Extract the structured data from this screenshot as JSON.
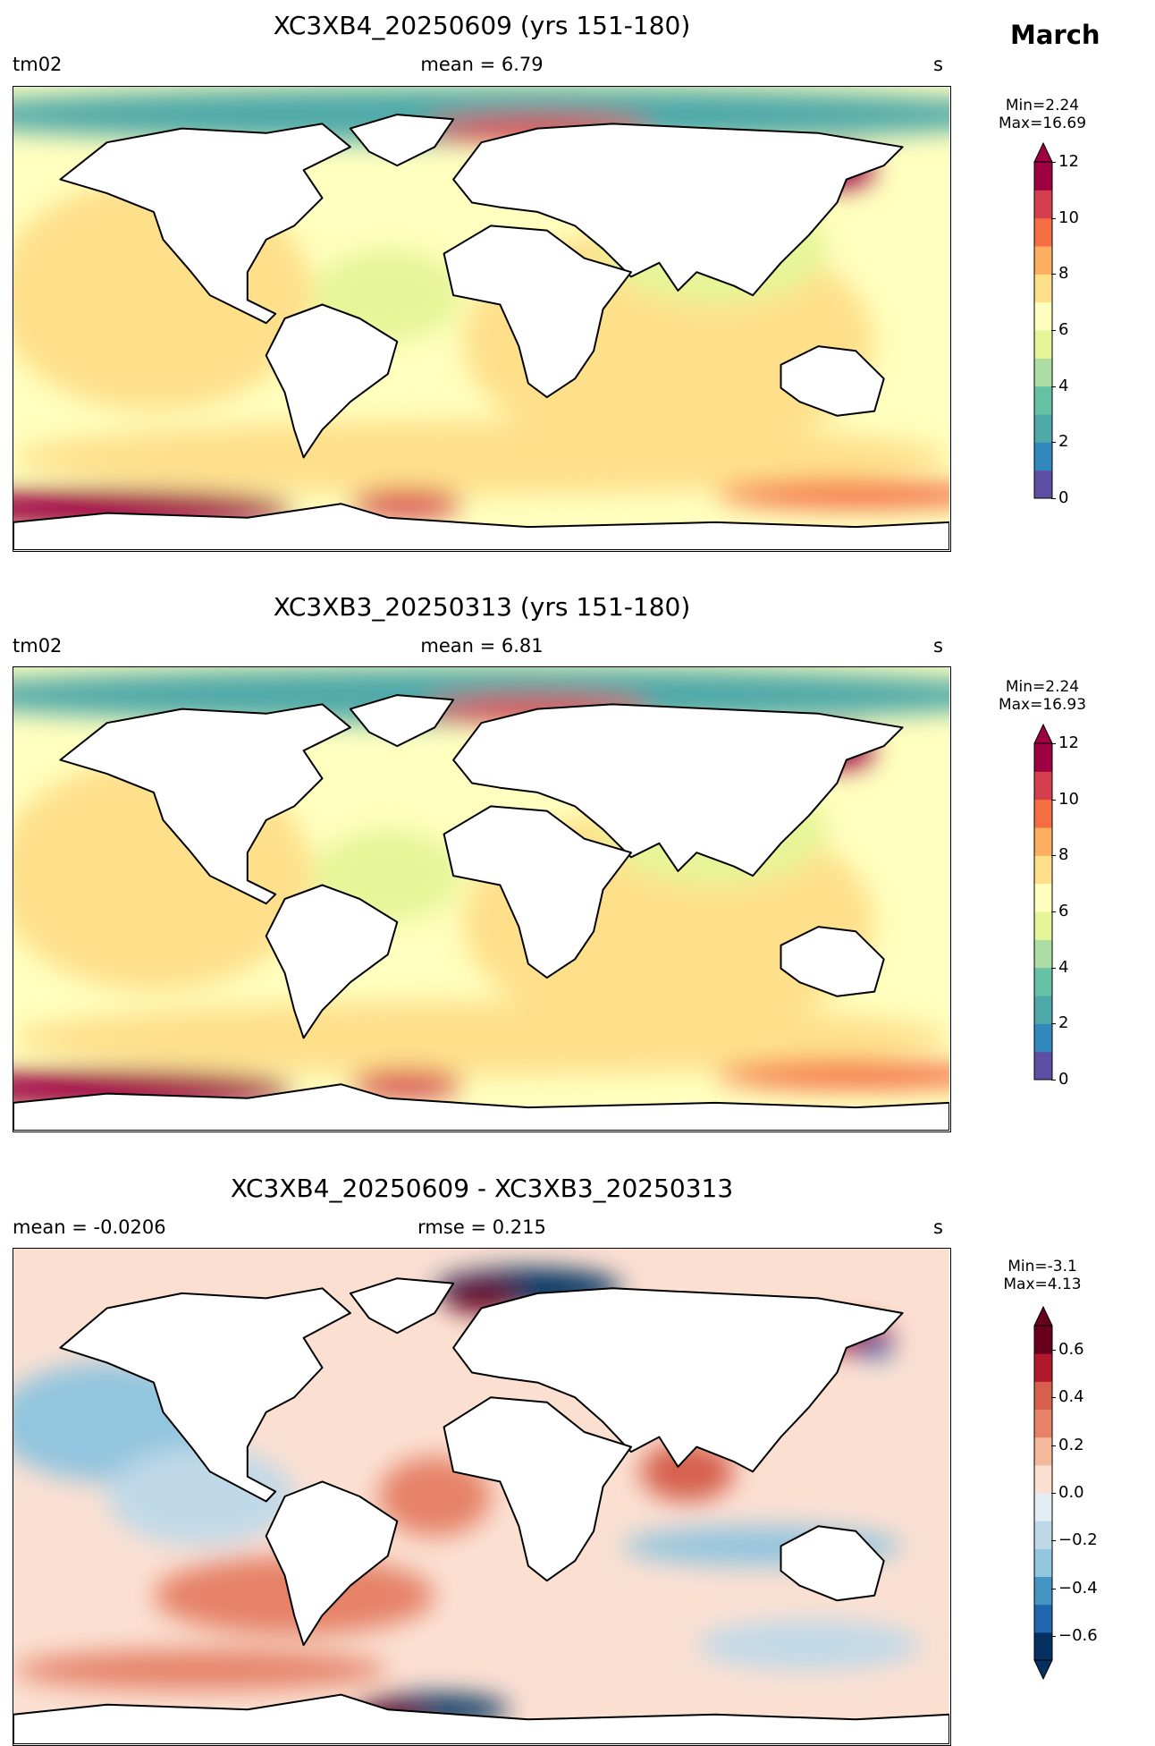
{
  "figure_title": "March",
  "panels": [
    {
      "title": "XC3XB4_20250609 (yrs 151-180)",
      "left_label": "tm02",
      "center_label": "mean = 6.79",
      "right_label": "s",
      "colorbar": {
        "min_label": "Min=2.24",
        "max_label": "Max=16.69",
        "ticks": [
          "0",
          "2",
          "4",
          "6",
          "8",
          "10",
          "12"
        ],
        "range": [
          0,
          12
        ],
        "colors": [
          "#5e4fa2",
          "#3288bd",
          "#4fa9a9",
          "#66c2a5",
          "#abdda4",
          "#e6f598",
          "#ffffbf",
          "#fee08b",
          "#fdae61",
          "#f46d43",
          "#d53e4f",
          "#9e0142"
        ],
        "extend": "max"
      }
    },
    {
      "title": "XC3XB3_20250313 (yrs 151-180)",
      "left_label": "tm02",
      "center_label": "mean = 6.81",
      "right_label": "s",
      "colorbar": {
        "min_label": "Min=2.24",
        "max_label": "Max=16.93",
        "ticks": [
          "0",
          "2",
          "4",
          "6",
          "8",
          "10",
          "12"
        ],
        "range": [
          0,
          12
        ],
        "colors": [
          "#5e4fa2",
          "#3288bd",
          "#4fa9a9",
          "#66c2a5",
          "#abdda4",
          "#e6f598",
          "#ffffbf",
          "#fee08b",
          "#fdae61",
          "#f46d43",
          "#d53e4f",
          "#9e0142"
        ],
        "extend": "max"
      }
    },
    {
      "title": "XC3XB4_20250609 - XC3XB3_20250313",
      "left_label": "mean = -0.0206",
      "center_label": "rmse = 0.215",
      "right_label": "s",
      "colorbar": {
        "min_label": "Min=-3.1",
        "max_label": "Max=4.13",
        "ticks": [
          "−0.6",
          "−0.4",
          "−0.2",
          "0.0",
          "0.2",
          "0.4",
          "0.6"
        ],
        "range": [
          -0.7,
          0.7
        ],
        "colors": [
          "#053061",
          "#2166ac",
          "#4393c3",
          "#92c5de",
          "#c0d9e8",
          "#e3edf3",
          "#fbe0d2",
          "#f4b89b",
          "#e58267",
          "#d6604d",
          "#b2182b",
          "#67001f"
        ],
        "extend": "both"
      }
    }
  ]
}
